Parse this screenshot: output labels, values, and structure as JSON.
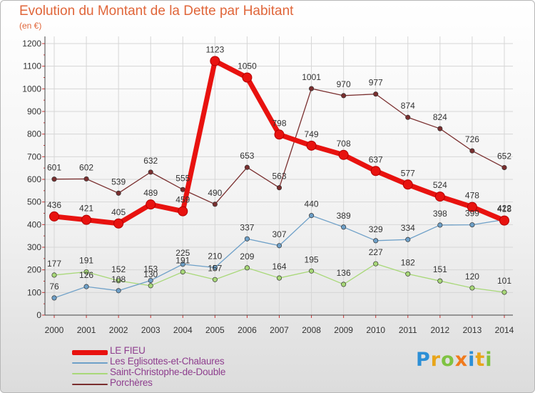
{
  "title": "Evolution du Montant de la Dette par Habitant",
  "unit_label": "(en €)",
  "brand": {
    "letters": [
      "P",
      "r",
      "o",
      "x",
      "i",
      "t",
      "i"
    ],
    "colors": [
      "#2c8fd6",
      "#e8a51a",
      "#7fc342",
      "#f07a1c",
      "#2c8fd6",
      "#e8a51a",
      "#7fc342"
    ]
  },
  "chart_data": {
    "type": "line",
    "title": "Evolution du Montant de la Dette par Habitant",
    "ylabel": "(en €)",
    "xlabel": "",
    "x": [
      "2000",
      "2001",
      "2002",
      "2003",
      "2004",
      "2005",
      "2006",
      "2007",
      "2008",
      "2009",
      "2010",
      "2011",
      "2012",
      "2013",
      "2014"
    ],
    "ylim": [
      0,
      1200
    ],
    "yticks": [
      "0",
      "100",
      "200",
      "300",
      "400",
      "500",
      "600",
      "700",
      "800",
      "900",
      "1000",
      "1100",
      "1200"
    ],
    "grid": true,
    "legend_position": "bottom-left",
    "series": [
      {
        "name": "LE FIEU",
        "color": "#e8120f",
        "values": [
          436,
          421,
          405,
          489,
          459,
          1123,
          1050,
          798,
          749,
          708,
          637,
          577,
          524,
          478,
          418
        ],
        "labels": [
          "436",
          "421",
          "405",
          "489",
          "459",
          "1123",
          "1050",
          "798",
          "749",
          "708",
          "637",
          "577",
          "524",
          "478",
          "418"
        ]
      },
      {
        "name": "Les Eglisottes-et-Chalaures",
        "color": "#6ea0c8",
        "values": [
          76,
          126,
          108,
          153,
          225,
          210,
          337,
          307,
          440,
          389,
          329,
          334,
          398,
          399,
          422
        ],
        "labels": [
          "76",
          "126",
          "108",
          "153",
          "225",
          "210",
          "337",
          "307",
          "440",
          "389",
          "329",
          "334",
          "398",
          "399",
          "422"
        ]
      },
      {
        "name": "Saint-Christophe-de-Double",
        "color": "#a8d878",
        "values": [
          177,
          191,
          152,
          130,
          191,
          157,
          209,
          164,
          195,
          136,
          227,
          182,
          151,
          120,
          101
        ],
        "labels": [
          "177",
          "191",
          "152",
          "130",
          "191",
          "157",
          "209",
          "164",
          "195",
          "136",
          "227",
          "182",
          "151",
          "120",
          "101"
        ]
      },
      {
        "name": "Porchères",
        "color": "#7a2f2f",
        "values": [
          601,
          602,
          539,
          632,
          555,
          490,
          653,
          563,
          1001,
          970,
          977,
          874,
          824,
          726,
          652
        ],
        "labels": [
          "601",
          "602",
          "539",
          "632",
          "555",
          "490",
          "653",
          "563",
          "1001",
          "970",
          "977",
          "874",
          "824",
          "726",
          "652"
        ]
      }
    ]
  }
}
